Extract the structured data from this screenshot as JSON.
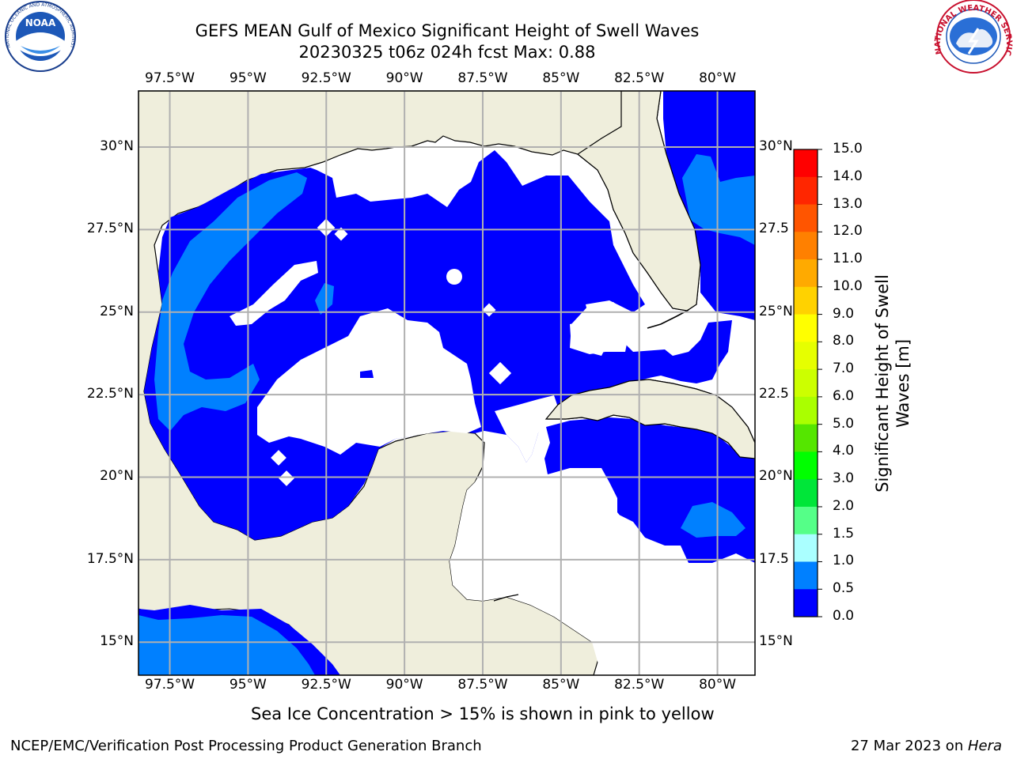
{
  "header": {
    "title_line1": "GEFS MEAN Gulf of Mexico Significant Height of Swell Waves",
    "title_line2": "20230325 t06z 024h fcst   Max: 0.88"
  },
  "logos": {
    "left": "NOAA",
    "left_ring": "NATIONAL OCEANIC AND ATMOSPHERIC ADMINISTRATION · U.S. DEPARTMENT OF COMMERCE",
    "right_ring": "NATIONAL WEATHER SERVICE"
  },
  "map": {
    "lon_range": [
      -98.5,
      -78.8
    ],
    "lat_range": [
      14.0,
      31.7
    ],
    "lon_ticks": [
      "97.5°W",
      "95°W",
      "92.5°W",
      "90°W",
      "87.5°W",
      "85°W",
      "82.5°W",
      "80°W"
    ],
    "lat_ticks_left": [
      "30°N",
      "27.5°N",
      "25°N",
      "22.5°N",
      "20°N",
      "17.5°N",
      "15°N"
    ],
    "lat_ticks_right": [
      "30°N",
      "27.5",
      "25°N",
      "22.5",
      "20°N",
      "17.5",
      "15°N"
    ],
    "grid": true,
    "colors": {
      "land": "#efeedc",
      "bin_0_0p5": "#0000ff",
      "bin_0p5_1p0": "#0080ff",
      "no_data": "#ffffff",
      "grid": "#b0b0b0"
    }
  },
  "colorbar": {
    "label": "Significant Height of Swell\nWaves [m]",
    "label_line1": "Significant Height of Swell",
    "label_line2": "Waves [m]",
    "ticks": [
      "15.0",
      "14.0",
      "13.0",
      "12.0",
      "11.0",
      "10.0",
      "9.0",
      "8.0",
      "7.0",
      "6.0",
      "5.0",
      "4.0",
      "3.0",
      "2.0",
      "1.5",
      "1.0",
      "0.5",
      "0.0"
    ],
    "colors_top_to_bottom": [
      "#ff0000",
      "#ff2600",
      "#ff5500",
      "#ff8000",
      "#ffaa00",
      "#ffd200",
      "#ffff00",
      "#e6ff00",
      "#ccff00",
      "#aaff00",
      "#55e600",
      "#00ff00",
      "#00e639",
      "#55ff88",
      "#aaffff",
      "#55ffff",
      "#00ffff",
      "#0080ff",
      "#0000ff"
    ]
  },
  "caption": "Sea Ice Concentration > 15% is shown in pink to yellow",
  "footer": {
    "left": "NCEP/EMC/Verification Post Processing Product Generation Branch",
    "right_date": "27 Mar 2023 on ",
    "right_machine": "Hera"
  }
}
